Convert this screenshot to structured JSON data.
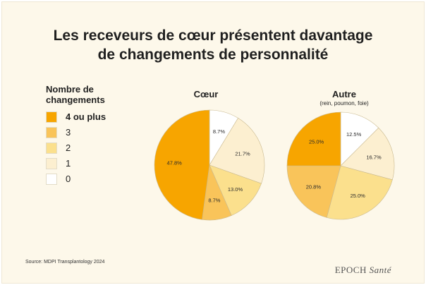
{
  "title_lines": [
    "Les receveurs de cœur présentent davantage",
    "de changements de personnalité"
  ],
  "legend": {
    "title_lines": [
      "Nombre de",
      "changements"
    ],
    "items": [
      {
        "label": "4 ou plus",
        "color": "#f7a500",
        "bold": true
      },
      {
        "label": "3",
        "color": "#f9c45a",
        "bold": false
      },
      {
        "label": "2",
        "color": "#fbe08d",
        "bold": false
      },
      {
        "label": "1",
        "color": "#fcefd0",
        "bold": false
      },
      {
        "label": "0",
        "color": "#ffffff",
        "bold": false
      }
    ]
  },
  "chart_data": [
    {
      "type": "pie",
      "title": "Cœur",
      "subtitle": "",
      "categories": [
        "0",
        "1",
        "2",
        "3",
        "4 ou plus"
      ],
      "values": [
        8.7,
        21.7,
        13.0,
        8.7,
        47.8
      ],
      "labels": [
        "8.7%",
        "21.7%",
        "13.0%",
        "8.7%",
        "47.8%"
      ]
    },
    {
      "type": "pie",
      "title": "Autre",
      "subtitle": "(rein, poumon, foie)",
      "categories": [
        "0",
        "1",
        "2",
        "3",
        "4 ou plus"
      ],
      "values": [
        12.5,
        16.7,
        25.0,
        20.8,
        25.0
      ],
      "labels": [
        "12.5%",
        "16.7%",
        "25.0%",
        "20.8%",
        "25.0%"
      ]
    }
  ],
  "source": "Source: MDPI Transplantology 2024",
  "brand": {
    "main": "EPOCH",
    "italic": "Santé"
  }
}
